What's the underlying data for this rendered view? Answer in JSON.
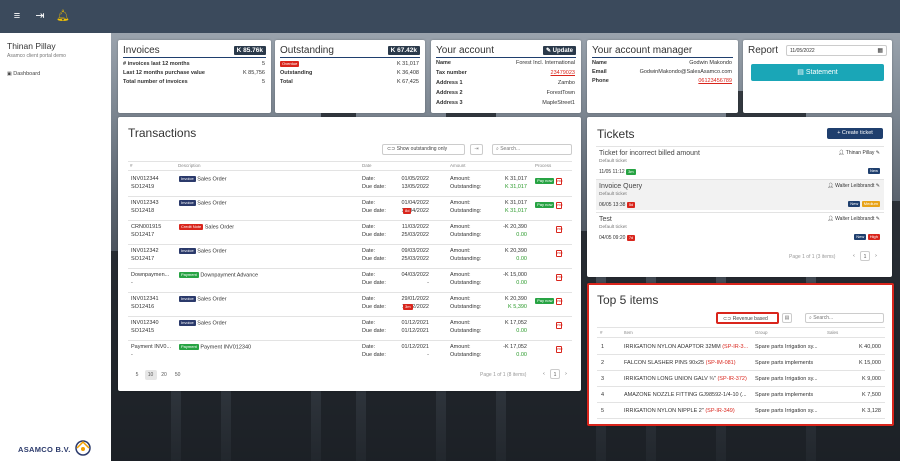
{
  "topbar": {
    "menu_icon": "menu-icon",
    "logout_icon": "logout-icon",
    "bell_icon": "bell-icon"
  },
  "sidebar": {
    "user_name": "Thinan Pillay",
    "portal_name": "Asamco client portal demo",
    "nav_dashboard": "Dashboard",
    "logo_text": "ASAMCO B.V."
  },
  "invoices": {
    "title": "Invoices",
    "amount_badge": "K 85.76k",
    "rows": [
      {
        "label": "# invoices last 12 months",
        "value": "5"
      },
      {
        "label": "Last 12 months purchase value",
        "value": "K 85,756"
      },
      {
        "label": "Total number of invoices",
        "value": "5"
      }
    ]
  },
  "outstanding": {
    "title": "Outstanding",
    "amount_badge": "K 67.42k",
    "rows": [
      {
        "label": "Overdue",
        "value": "K 31,017"
      },
      {
        "label": "Outstanding",
        "value": "K 36,408"
      },
      {
        "label": "Total",
        "value": "K 67,425"
      }
    ]
  },
  "account": {
    "title": "Your account",
    "update_label": "Update",
    "rows": [
      {
        "label": "Name",
        "value": "Forest Incl. International"
      },
      {
        "label": "Tax number",
        "value": "23479023"
      },
      {
        "label": "Address 1",
        "value": "Zambo"
      },
      {
        "label": "Address 2",
        "value": "ForestTown"
      },
      {
        "label": "Address 3",
        "value": "MapleStreet1"
      }
    ]
  },
  "manager": {
    "title": "Your account manager",
    "rows": [
      {
        "label": "Name",
        "value": "Godwin Makondo"
      },
      {
        "label": "Email",
        "value": "GodwinMakondo@SalesAsamco.com"
      },
      {
        "label": "Phone",
        "value": "06123456789"
      }
    ]
  },
  "report": {
    "title": "Report",
    "date_value": "11/05/2022",
    "statement_label": "Statement"
  },
  "transactions": {
    "title": "Transactions",
    "toggle_label": "Show outstanding only",
    "search_placeholder": "Search...",
    "columns": {
      "num": "#",
      "desc": "Description",
      "date": "Date",
      "amount": "Amount",
      "process": "Process"
    },
    "rows": [
      {
        "id1": "INV012344",
        "id2": "SO12419",
        "badge": "Invoice",
        "badge_type": "inv",
        "desc": "Sales Order",
        "date": "01/05/2022",
        "due": "13/05/2022",
        "late": "",
        "amount": "K 31,017",
        "outstanding": "K 31,017",
        "paynow": "Pay now"
      },
      {
        "id1": "INV012343",
        "id2": "SO12418",
        "badge": "Invoice",
        "badge_type": "inv",
        "desc": "Sales Order",
        "date": "01/04/2022",
        "due": "14/04/2022",
        "late": "8d",
        "amount": "K 31,017",
        "outstanding": "K 31,017",
        "paynow": "Pay now"
      },
      {
        "id1": "CRN001915",
        "id2": "SO12417",
        "badge": "Credit Note",
        "badge_type": "cn",
        "desc": "Sales Order",
        "date": "11/03/2022",
        "due": "25/03/2022",
        "late": "",
        "amount": "-K 20,390",
        "outstanding": "0.00",
        "paynow": ""
      },
      {
        "id1": "INV012342",
        "id2": "SO12417",
        "badge": "Invoice",
        "badge_type": "inv",
        "desc": "Sales Order",
        "date": "09/03/2022",
        "due": "25/03/2022",
        "late": "",
        "amount": "K 20,390",
        "outstanding": "0.00",
        "paynow": ""
      },
      {
        "id1": "Downpaymen...",
        "id2": "-",
        "badge": "Payment",
        "badge_type": "pay",
        "desc": "Downpayment Advance",
        "date": "04/03/2022",
        "due": "-",
        "late": "",
        "amount": "-K 15,000",
        "outstanding": "0.00",
        "paynow": ""
      },
      {
        "id1": "INV012341",
        "id2": "SO12416",
        "badge": "Invoice",
        "badge_type": "inv",
        "desc": "Sales Order",
        "date": "29/01/2022",
        "due": "11/02/2022",
        "late": "3m",
        "amount": "K 20,390",
        "outstanding": "K 5,390",
        "paynow": "Pay now"
      },
      {
        "id1": "INV012340",
        "id2": "SO12415",
        "badge": "Invoice",
        "badge_type": "inv",
        "desc": "Sales Order",
        "date": "01/12/2021",
        "due": "01/12/2021",
        "late": "",
        "amount": "K 17,052",
        "outstanding": "0.00",
        "paynow": ""
      },
      {
        "id1": "Payment INV0...",
        "id2": "-",
        "badge": "Payment",
        "badge_type": "pay",
        "desc": "Payment INV012340",
        "date": "01/12/2021",
        "due": "-",
        "late": "",
        "amount": "-K 17,052",
        "outstanding": "0.00",
        "paynow": ""
      }
    ],
    "date_label": "Date:",
    "due_label": "Due date:",
    "amount_label": "Amount:",
    "outstanding_label": "Outstanding:",
    "page_sizes": [
      "5",
      "10",
      "20",
      "50"
    ],
    "pagination_text": "Page 1 of 1 (8 items)",
    "current_page": "1"
  },
  "tickets": {
    "title": "Tickets",
    "create_label": "+ Create ticket",
    "items": [
      {
        "title": "Ticket for incorrect billed amount",
        "type": "Default ticket",
        "user": "Thinan Pillay",
        "time": "11/05 11:12",
        "age": "3m",
        "badges": [
          {
            "text": "New",
            "color": "#1f3f6e"
          }
        ]
      },
      {
        "title": "Invoice Query",
        "type": "Default ticket",
        "user": "Walter Leibbrandt",
        "time": "06/05 13:38",
        "age": "5d",
        "badges": [
          {
            "text": "New",
            "color": "#1f3f6e"
          },
          {
            "text": "Medium",
            "color": "#e8a317"
          }
        ]
      },
      {
        "title": "Test",
        "type": "Default ticket",
        "user": "Walter Leibbrandt",
        "time": "04/05 09:20",
        "age": "7d",
        "badges": [
          {
            "text": "New",
            "color": "#1f3f6e"
          },
          {
            "text": "High",
            "color": "#d9251c"
          }
        ]
      }
    ],
    "pagination_text": "Page 1 of 1 (3 items)",
    "current_page": "1"
  },
  "top5": {
    "title": "Top 5 items",
    "toggle_label": "Revenue based",
    "search_placeholder": "Search...",
    "columns": {
      "num": "#",
      "item": "Item",
      "group": "Group",
      "sales": "Sales"
    },
    "rows": [
      {
        "n": "1",
        "item": "IRRIGATION NYLON ADAPTOR 32MM",
        "code": "(SP-IR-3...",
        "group": "Spare parts Irrigation sy...",
        "sales": "K 40,000"
      },
      {
        "n": "2",
        "item": "FALCON SLASHER PINS 90x25",
        "code": "(SP-IM-081)",
        "group": "Spare parts implements",
        "sales": "K 15,000"
      },
      {
        "n": "3",
        "item": "IRRIGATION LONG UNION GALV ¾\"",
        "code": "(SP-IR-372)",
        "group": "Spare parts Irrigation sy...",
        "sales": "K 9,000"
      },
      {
        "n": "4",
        "item": "AMAZONE NOZZLE FITTING GJ98592-1/4-10 (...",
        "code": "",
        "group": "Spare parts implements",
        "sales": "K 7,500"
      },
      {
        "n": "5",
        "item": "IRRIGATION NYLON NIPPLE 2\"",
        "code": "(SP-IR-349)",
        "group": "Spare parts Irrigation sy...",
        "sales": "K 3,128"
      }
    ]
  },
  "colors": {
    "topbar": "#3b4a5c",
    "navy": "#1f3f6e",
    "teal": "#1aa6b7",
    "red": "#d9251c",
    "green": "#27a343",
    "highlight": "#d9251c"
  }
}
